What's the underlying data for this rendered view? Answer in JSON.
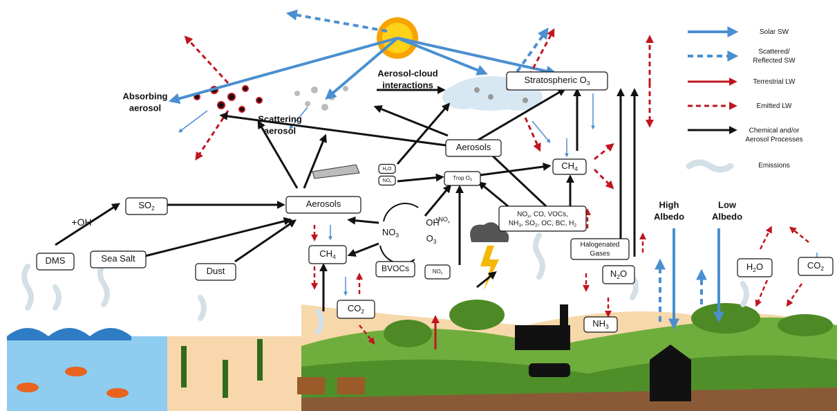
{
  "labels": [
    {
      "lines": [
        [
          "Absorbing"
        ],
        [
          "aerosol"
        ]
      ]
    },
    {
      "lines": [
        [
          "Scattering"
        ],
        [
          "aerosol"
        ]
      ]
    },
    {
      "lines": [
        [
          "Aerosol-cloud"
        ],
        [
          "interactions"
        ]
      ]
    },
    {
      "lines": [
        [
          "Stratospheric O",
          "3"
        ]
      ]
    },
    {
      "lines": [
        [
          "Aerosols"
        ]
      ]
    },
    {
      "lines": [
        [
          "CH",
          "4"
        ]
      ]
    },
    {
      "lines": [
        [
          "Trop O",
          "3"
        ]
      ]
    },
    {
      "lines": [
        [
          "H",
          "2",
          "O"
        ]
      ]
    },
    {
      "lines": [
        [
          "NO",
          "x"
        ]
      ]
    },
    {
      "lines": [
        [
          "NO",
          "x",
          ", CO, VOCs,"
        ],
        [
          "NH",
          "3",
          ", SO",
          "2",
          ", OC, BC, H",
          "2"
        ]
      ]
    },
    {
      "lines": [
        [
          "Aerosols"
        ]
      ]
    },
    {
      "lines": [
        [
          "SO",
          "2"
        ]
      ]
    },
    {
      "lines": [
        [
          "+OH"
        ]
      ]
    },
    {
      "lines": [
        [
          "DMS"
        ]
      ]
    },
    {
      "lines": [
        [
          "Sea Salt"
        ]
      ]
    },
    {
      "lines": [
        [
          "Dust"
        ]
      ]
    },
    {
      "lines": [
        [
          "NO",
          "3"
        ]
      ]
    },
    {
      "lines": [
        [
          "OH"
        ]
      ]
    },
    {
      "lines": [
        [
          "O",
          "3"
        ]
      ]
    },
    {
      "lines": [
        [
          "+NO",
          "x"
        ]
      ]
    },
    {
      "lines": [
        [
          "CH",
          "4"
        ]
      ]
    },
    {
      "lines": [
        [
          "BVOCs"
        ]
      ]
    },
    {
      "lines": [
        [
          "NO",
          "x"
        ]
      ]
    },
    {
      "lines": [
        [
          "CO",
          "2"
        ]
      ]
    },
    {
      "lines": [
        [
          "Halogenated"
        ],
        [
          "Gases"
        ]
      ]
    },
    {
      "lines": [
        [
          "N",
          "2",
          "O"
        ]
      ]
    },
    {
      "lines": [
        [
          "NH",
          "3"
        ]
      ]
    },
    {
      "lines": [
        [
          "High"
        ],
        [
          "Albedo"
        ]
      ]
    },
    {
      "lines": [
        [
          "Low"
        ],
        [
          "Albedo"
        ]
      ]
    },
    {
      "lines": [
        [
          "H",
          "2",
          "O"
        ]
      ]
    },
    {
      "lines": [
        [
          "CO",
          "2"
        ]
      ]
    }
  ],
  "legend": [
    {
      "lines": [
        [
          "Solar SW"
        ]
      ]
    },
    {
      "lines": [
        [
          "Scattered/"
        ],
        [
          "Reflected SW"
        ]
      ]
    },
    {
      "lines": [
        [
          "Terrestrial LW"
        ]
      ]
    },
    {
      "lines": [
        [
          "Emitted LW"
        ]
      ]
    },
    {
      "lines": [
        [
          "Chemical and/or"
        ],
        [
          "Aerosol Processes"
        ]
      ]
    },
    {
      "lines": [
        [
          "Emissions"
        ]
      ]
    }
  ]
}
